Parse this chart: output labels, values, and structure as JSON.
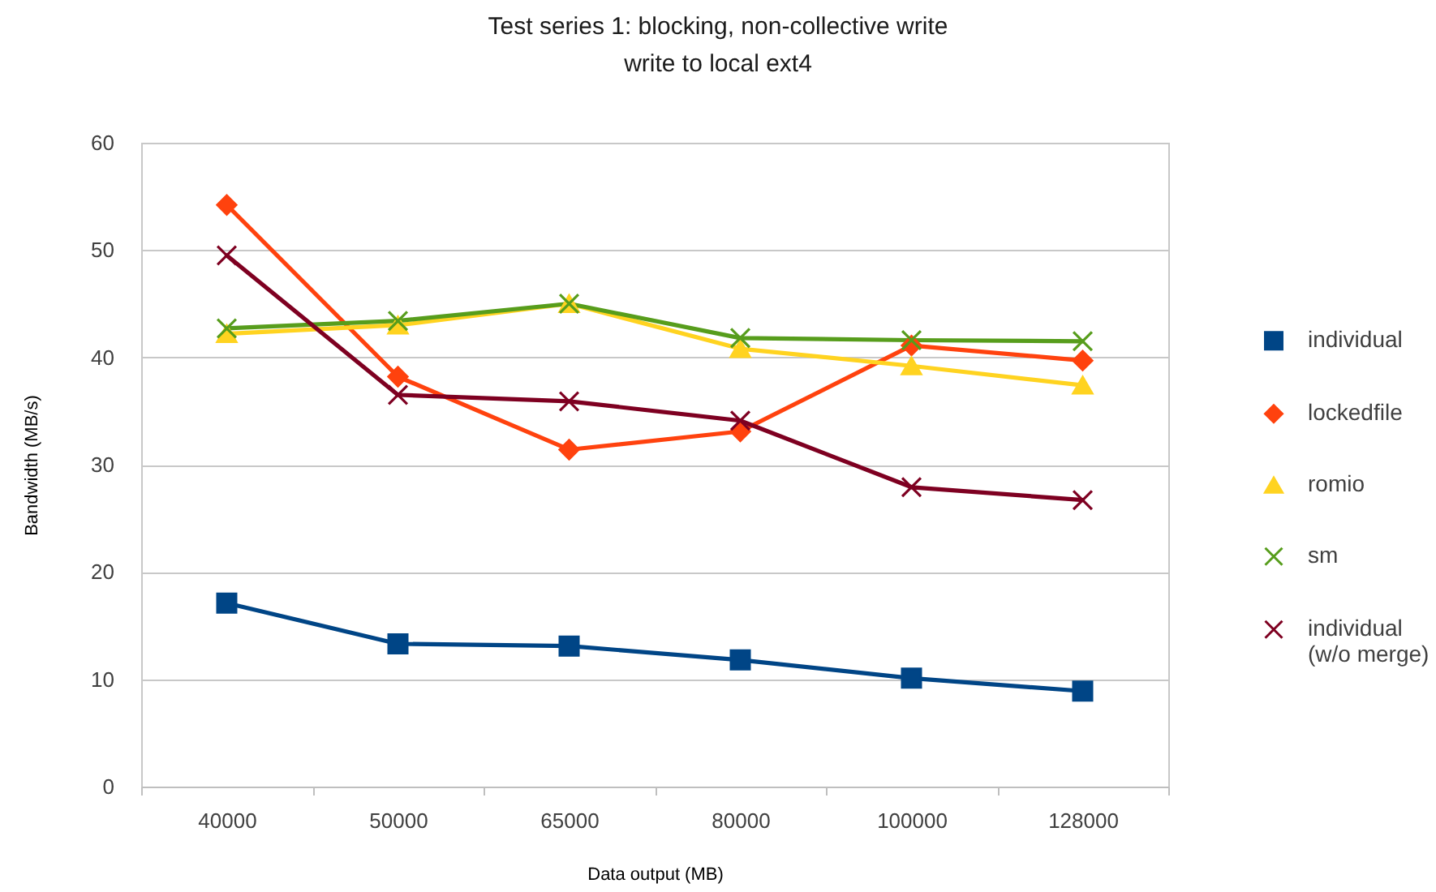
{
  "chart_data": {
    "type": "line",
    "title": "Test series 1: blocking, non-collective write",
    "subtitle": "write to local ext4",
    "xlabel": "Data output (MB)",
    "ylabel": "Bandwidth (MB/s)",
    "categories": [
      "40000",
      "50000",
      "65000",
      "80000",
      "100000",
      "128000"
    ],
    "ylim": [
      0,
      60
    ],
    "yticks": [
      0,
      10,
      20,
      30,
      40,
      50,
      60
    ],
    "grid": "y",
    "legend": "right",
    "series": [
      {
        "name": "individual",
        "color": "#004586",
        "marker": "square",
        "values": [
          17.1,
          13.3,
          13.1,
          11.8,
          10.1,
          8.9
        ]
      },
      {
        "name": "lockedfile",
        "color": "#ff420e",
        "marker": "diamond",
        "values": [
          54.2,
          38.2,
          31.4,
          33.1,
          41.1,
          39.7
        ]
      },
      {
        "name": "romio",
        "color": "#ffd320",
        "marker": "triangle",
        "values": [
          42.2,
          43.0,
          45.0,
          40.8,
          39.2,
          37.4
        ]
      },
      {
        "name": "sm",
        "color": "#579d1c",
        "marker": "cross",
        "values": [
          42.7,
          43.4,
          45.0,
          41.8,
          41.6,
          41.5
        ]
      },
      {
        "name": "individual (w/o merge)",
        "color": "#7e0021",
        "marker": "cross",
        "values": [
          49.5,
          36.5,
          35.9,
          34.1,
          27.9,
          26.7
        ]
      }
    ]
  }
}
